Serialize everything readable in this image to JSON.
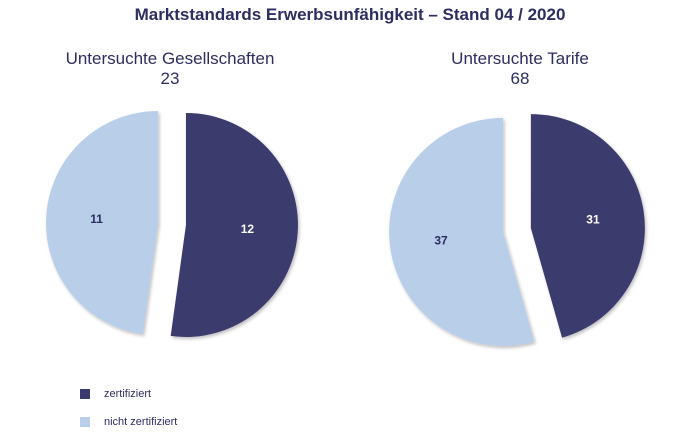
{
  "chart_data": [
    {
      "type": "pie",
      "title": "Untersuchte Gesellschaften",
      "total": "23",
      "categories": [
        "zertifiziert",
        "nicht zertifiziert"
      ],
      "values": [
        12,
        11
      ],
      "labels": [
        "12",
        "11"
      ]
    },
    {
      "type": "pie",
      "title": "Untersuchte Tarife",
      "total": "68",
      "categories": [
        "zertifiziert",
        "nicht zertifiziert"
      ],
      "values": [
        31,
        37
      ],
      "labels": [
        "31",
        "37"
      ]
    }
  ],
  "main_title": "Marktstandards Erwerbsunfähigkeit – Stand 04 / 2020",
  "legend": [
    {
      "label": "zertifiziert",
      "color": "#3b3a6e"
    },
    {
      "label": "nicht zertifiziert",
      "color": "#b9cfe9"
    }
  ],
  "colors": {
    "dark": "#3b3a6e",
    "light": "#b9cfe9",
    "text": "#2e2d62"
  }
}
